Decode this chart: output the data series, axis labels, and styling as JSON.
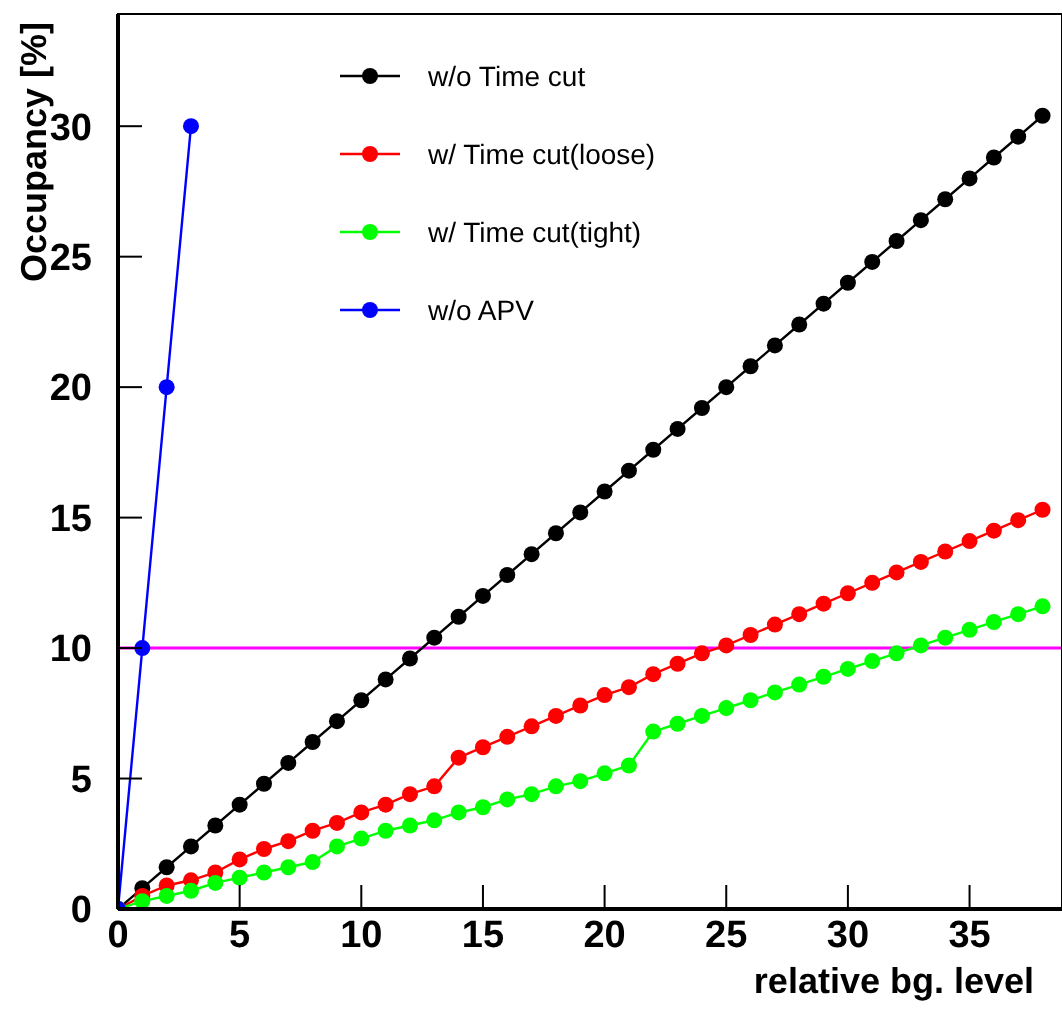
{
  "chart_data": {
    "type": "line",
    "xlabel": "relative bg. level",
    "ylabel": "Occupancy [%]",
    "xlim": [
      0,
      38.8
    ],
    "ylim": [
      0,
      34.3
    ],
    "xticks": [
      0,
      5,
      10,
      15,
      20,
      25,
      30,
      35
    ],
    "yticks": [
      0,
      5,
      10,
      15,
      20,
      25,
      30
    ],
    "marker": "circle",
    "legend": "top",
    "grid": false,
    "ref_lines": [
      {
        "axis": "y",
        "value": 10,
        "color": "#ff00ff"
      }
    ],
    "series": [
      {
        "name": "w/o Time cut",
        "color": "#000000",
        "x": [
          0,
          1,
          2,
          3,
          4,
          5,
          6,
          7,
          8,
          9,
          10,
          11,
          12,
          13,
          14,
          15,
          16,
          17,
          18,
          19,
          20,
          21,
          22,
          23,
          24,
          25,
          26,
          27,
          28,
          29,
          30,
          31,
          32,
          33,
          34,
          35,
          36,
          37,
          38
        ],
        "values": [
          0,
          0.8,
          1.6,
          2.4,
          3.2,
          4,
          4.8,
          5.6,
          6.4,
          7.2,
          8,
          8.8,
          9.6,
          10.4,
          11.2,
          12,
          12.8,
          13.6,
          14.4,
          15.2,
          16,
          16.8,
          17.6,
          18.4,
          19.2,
          20,
          20.8,
          21.6,
          22.4,
          23.2,
          24,
          24.8,
          25.6,
          26.4,
          27.2,
          28,
          28.8,
          29.6,
          30.4
        ]
      },
      {
        "name": "w/ Time cut(loose)",
        "color": "#ff0000",
        "x": [
          0,
          1,
          2,
          3,
          4,
          5,
          6,
          7,
          8,
          9,
          10,
          11,
          12,
          13,
          14,
          15,
          16,
          17,
          18,
          19,
          20,
          21,
          22,
          23,
          24,
          25,
          26,
          27,
          28,
          29,
          30,
          31,
          32,
          33,
          34,
          35,
          36,
          37,
          38
        ],
        "values": [
          0,
          0.5,
          0.9,
          1.1,
          1.4,
          1.9,
          2.3,
          2.6,
          3,
          3.3,
          3.7,
          4,
          4.4,
          4.7,
          5.8,
          6.2,
          6.6,
          7,
          7.4,
          7.8,
          8.2,
          8.5,
          9,
          9.4,
          9.8,
          10.1,
          10.5,
          10.9,
          11.3,
          11.7,
          12.1,
          12.5,
          12.9,
          13.3,
          13.7,
          14.1,
          14.5,
          14.9,
          15.3
        ]
      },
      {
        "name": "w/ Time cut(tight)",
        "color": "#00ff00",
        "x": [
          0,
          1,
          2,
          3,
          4,
          5,
          6,
          7,
          8,
          9,
          10,
          11,
          12,
          13,
          14,
          15,
          16,
          17,
          18,
          19,
          20,
          21,
          22,
          23,
          24,
          25,
          26,
          27,
          28,
          29,
          30,
          31,
          32,
          33,
          34,
          35,
          36,
          37,
          38
        ],
        "values": [
          0,
          0.3,
          0.5,
          0.7,
          1,
          1.2,
          1.4,
          1.6,
          1.8,
          2.4,
          2.7,
          3,
          3.2,
          3.4,
          3.7,
          3.9,
          4.2,
          4.4,
          4.7,
          4.9,
          5.2,
          5.5,
          6.8,
          7.1,
          7.4,
          7.7,
          8,
          8.3,
          8.6,
          8.9,
          9.2,
          9.5,
          9.8,
          10.1,
          10.4,
          10.7,
          11,
          11.3,
          11.6
        ]
      },
      {
        "name": "w/o APV",
        "color": "#0000ff",
        "x": [
          0,
          1,
          2,
          3
        ],
        "values": [
          0,
          10,
          20,
          30
        ]
      }
    ]
  }
}
